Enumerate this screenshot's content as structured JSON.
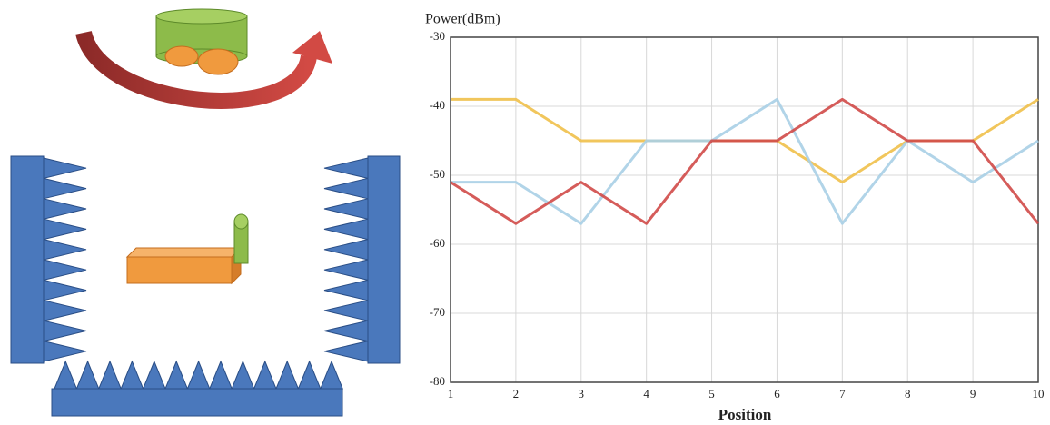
{
  "chart_data": {
    "type": "line",
    "y_label": "Power(dBm)",
    "x_label": "Position",
    "x": [
      1,
      2,
      3,
      4,
      5,
      6,
      7,
      8,
      9,
      10
    ],
    "xlim": [
      1,
      10
    ],
    "xticks": [
      1,
      2,
      3,
      4,
      5,
      6,
      7,
      8,
      9,
      10
    ],
    "ylim": [
      -80,
      -30
    ],
    "yticks": [
      -30,
      -40,
      -50,
      -60,
      -70,
      -80
    ],
    "grid": true,
    "series": [
      {
        "color": "#f0c04a",
        "values": [
          -39,
          -39,
          -45,
          -45,
          -45,
          -45,
          -51,
          -45,
          -45,
          -39
        ]
      },
      {
        "color": "#a9cfe6",
        "values": [
          -51,
          -51,
          -57,
          -45,
          -45,
          -39,
          -57,
          -45,
          -51,
          -45
        ]
      },
      {
        "color": "#d04a48",
        "values": [
          -51,
          -57,
          -51,
          -57,
          -45,
          -45,
          -39,
          -45,
          -45,
          -57
        ]
      }
    ]
  }
}
